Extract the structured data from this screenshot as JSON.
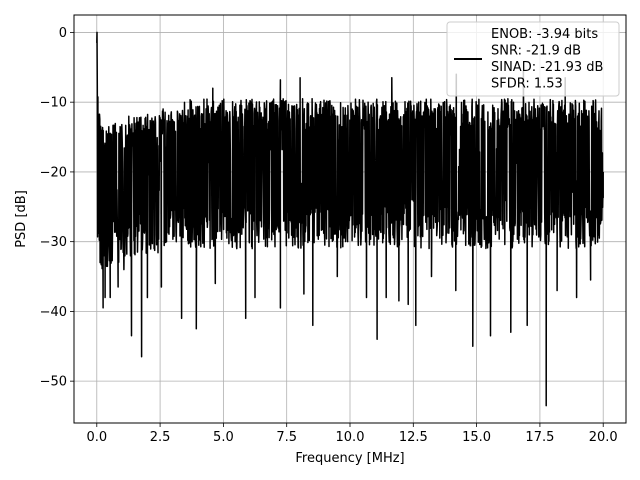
{
  "chart_data": {
    "type": "line",
    "title": "",
    "xlabel": "Frequency [MHz]",
    "ylabel": "PSD [dB]",
    "xlim": [
      -0.9,
      20.9
    ],
    "ylim": [
      -56,
      2.5
    ],
    "xticks": [
      0.0,
      2.5,
      5.0,
      7.5,
      10.0,
      12.5,
      15.0,
      17.5,
      20.0
    ],
    "xtick_labels": [
      "0.0",
      "2.5",
      "5.0",
      "7.5",
      "10.0",
      "12.5",
      "15.0",
      "17.5",
      "20.0"
    ],
    "yticks": [
      0,
      -10,
      -20,
      -30,
      -40,
      -50
    ],
    "ytick_labels": [
      "0",
      "−10",
      "−20",
      "−30",
      "−40",
      "−50"
    ],
    "grid": true,
    "legend_position": "top-right",
    "series": [
      {
        "name": "ENOB: -3.94 bits\nSNR: -21.9 dB\nSINAD: -21.93 dB\nSFDR: 1.53",
        "color": "#000000",
        "description": "noise-like power spectral density from 0 to 20 MHz, mostly between about -35 dB and -10 dB",
        "x": [
          0.0,
          0.01,
          0.03,
          0.06,
          0.1,
          0.15,
          0.2,
          0.3,
          0.4,
          0.5,
          0.6,
          0.75,
          0.9,
          1.05,
          1.2,
          1.35,
          1.5,
          1.75,
          2.0,
          2.25,
          2.5,
          2.75,
          3.0,
          3.25,
          3.5,
          3.75,
          4.0,
          4.25,
          4.5,
          4.75,
          5.0,
          5.25,
          5.5,
          5.75,
          6.0,
          6.25,
          6.5,
          6.75,
          7.0,
          7.25,
          7.5,
          7.75,
          8.0,
          8.25,
          8.5,
          8.75,
          9.0,
          9.25,
          9.5,
          9.75,
          10.0,
          10.25,
          10.5,
          10.75,
          11.0,
          11.25,
          11.5,
          11.75,
          12.0,
          12.25,
          12.5,
          12.75,
          13.0,
          13.25,
          13.5,
          13.75,
          14.0,
          14.25,
          14.5,
          14.75,
          15.0,
          15.25,
          15.5,
          15.75,
          16.0,
          16.25,
          16.5,
          16.75,
          17.0,
          17.25,
          17.5,
          17.75,
          18.0,
          18.25,
          18.5,
          18.75,
          19.0,
          19.25,
          19.5,
          19.75,
          20.0
        ],
        "y": [
          -1.5,
          0.0,
          -10.0,
          -20.0,
          -15.0,
          -25.0,
          -11.0,
          -20.0,
          -30.0,
          -17.0,
          -25.0,
          -20.0,
          -14.0,
          -25.0,
          -22.0,
          -18.0,
          -24.0,
          -20.0,
          -21.0,
          -19.0,
          -22.0,
          -20.0,
          -18.0,
          -21.0,
          -19.0,
          -20.0,
          -22.0,
          -20.0,
          -19.0,
          -21.0,
          -20.0,
          -18.0,
          -21.0,
          -22.0,
          -19.0,
          -20.0,
          -21.0,
          -19.0,
          -20.0,
          -22.0,
          -20.0,
          -19.0,
          -21.0,
          -20.0,
          -22.0,
          -19.0,
          -20.0,
          -21.0,
          -20.0,
          -19.0,
          -21.0,
          -20.0,
          -22.0,
          -19.0,
          -20.0,
          -21.0,
          -20.0,
          -19.0,
          -21.0,
          -20.0,
          -22.0,
          -19.0,
          -20.0,
          -21.0,
          -19.0,
          -20.0,
          -22.0,
          -20.0,
          -19.0,
          -21.0,
          -20.0,
          -19.0,
          -21.0,
          -20.0,
          -22.0,
          -19.0,
          -20.0,
          -21.0,
          -20.0,
          -19.0,
          -21.0,
          -20.0,
          -22.0,
          -19.0,
          -20.0,
          -21.0,
          -20.0,
          -19.0,
          -21.0,
          -20.0,
          -20.0
        ],
        "upper_envelope": [
          -1.5,
          0.0,
          -8.0,
          -10.5,
          -11.5,
          -12.0,
          -13.0,
          -13.5,
          -13.5,
          -13.0,
          -12.5,
          -13.0,
          -13.0,
          -12.5,
          -12.0,
          -12.0,
          -12.0,
          -12.0,
          -11.5,
          -11.0,
          -11.0,
          -10.5,
          -10.5,
          -10.0,
          -10.0,
          -9.5,
          -10.0,
          -9.5,
          -9.5,
          -9.5,
          -9.5,
          -9.5,
          -10.0,
          -9.5,
          -9.5,
          -9.5,
          -10.0,
          -9.5,
          -9.5,
          -9.5,
          -9.5,
          -10.0,
          -9.5,
          -9.5,
          -9.5,
          -9.5,
          -9.5,
          -9.5,
          -10.0,
          -9.5,
          -9.5,
          -9.5,
          -9.5,
          -10.0,
          -9.5,
          -9.5,
          -9.5,
          -9.5,
          -9.5,
          -9.5,
          -10.0,
          -9.5,
          -9.5,
          -9.5,
          -9.5,
          -9.5,
          -9.5,
          -10.0,
          -9.5,
          -9.5,
          -9.5,
          -9.5,
          -9.5,
          -10.0,
          -9.5,
          -9.5,
          -9.5,
          -9.5,
          -9.5,
          -9.5,
          -10.0,
          -9.5,
          -9.5,
          -9.5,
          -9.5,
          -10.0,
          -9.5,
          -9.5,
          -9.5,
          -9.5,
          -11.0
        ],
        "typical_lower_envelope": [
          -1.5,
          -22.0,
          -30.0,
          -33.0,
          -33.0,
          -34.0,
          -35.0,
          -35.0,
          -34.0,
          -34.0,
          -33.0,
          -33.0,
          -33.0,
          -33.0,
          -33.0,
          -33.0,
          -32.0,
          -32.0,
          -32.0,
          -32.0,
          -32.0,
          -31.0,
          -31.0,
          -31.0,
          -31.0,
          -31.0,
          -31.0,
          -31.0,
          -31.0,
          -31.0,
          -31.0,
          -31.0,
          -31.0,
          -31.0,
          -31.0,
          -31.0,
          -31.0,
          -31.0,
          -31.0,
          -31.0,
          -31.0,
          -31.0,
          -31.0,
          -31.0,
          -31.0,
          -31.0,
          -31.0,
          -31.0,
          -31.0,
          -31.0,
          -31.0,
          -31.0,
          -31.0,
          -31.0,
          -31.0,
          -31.0,
          -31.0,
          -31.0,
          -31.0,
          -31.0,
          -31.0,
          -31.0,
          -31.0,
          -31.0,
          -31.0,
          -31.0,
          -31.0,
          -31.0,
          -31.0,
          -31.0,
          -31.0,
          -31.0,
          -31.0,
          -31.0,
          -31.0,
          -31.0,
          -31.0,
          -31.0,
          -31.0,
          -31.0,
          -31.0,
          -31.0,
          -31.0,
          -31.0,
          -31.0,
          -31.0,
          -31.0,
          -31.0,
          -31.0,
          -31.0,
          -27.0
        ],
        "deep_dips": [
          {
            "x": 0.13,
            "y": -33.0
          },
          {
            "x": 0.25,
            "y": -39.5
          },
          {
            "x": 0.33,
            "y": -38.0
          },
          {
            "x": 0.53,
            "y": -38.0
          },
          {
            "x": 0.84,
            "y": -36.5
          },
          {
            "x": 1.07,
            "y": -34.0
          },
          {
            "x": 1.37,
            "y": -43.5
          },
          {
            "x": 1.77,
            "y": -46.5
          },
          {
            "x": 2.0,
            "y": -38.0
          },
          {
            "x": 2.55,
            "y": -36.5
          },
          {
            "x": 3.35,
            "y": -41.0
          },
          {
            "x": 3.93,
            "y": -42.5
          },
          {
            "x": 4.68,
            "y": -36.0
          },
          {
            "x": 5.88,
            "y": -41.0
          },
          {
            "x": 6.25,
            "y": -38.0
          },
          {
            "x": 7.25,
            "y": -39.5
          },
          {
            "x": 8.18,
            "y": -37.5
          },
          {
            "x": 8.53,
            "y": -42.0
          },
          {
            "x": 9.5,
            "y": -35.0
          },
          {
            "x": 10.65,
            "y": -38.0
          },
          {
            "x": 11.07,
            "y": -44.0
          },
          {
            "x": 11.43,
            "y": -38.0
          },
          {
            "x": 11.93,
            "y": -38.5
          },
          {
            "x": 12.3,
            "y": -39.0
          },
          {
            "x": 12.6,
            "y": -42.0
          },
          {
            "x": 13.22,
            "y": -35.0
          },
          {
            "x": 14.18,
            "y": -37.0
          },
          {
            "x": 14.85,
            "y": -45.0
          },
          {
            "x": 15.55,
            "y": -43.5
          },
          {
            "x": 16.35,
            "y": -43.0
          },
          {
            "x": 17.0,
            "y": -42.0
          },
          {
            "x": 17.75,
            "y": -53.5
          },
          {
            "x": 18.18,
            "y": -37.0
          },
          {
            "x": 18.95,
            "y": -38.0
          },
          {
            "x": 19.5,
            "y": -35.5
          }
        ],
        "peak_spikes": [
          {
            "x": 4.58,
            "y": -8.0
          },
          {
            "x": 7.25,
            "y": -6.8
          },
          {
            "x": 8.03,
            "y": -6.5
          },
          {
            "x": 11.65,
            "y": -6.5
          },
          {
            "x": 14.2,
            "y": -6.0
          },
          {
            "x": 16.85,
            "y": -5.5
          },
          {
            "x": 18.5,
            "y": -6.5
          }
        ]
      }
    ]
  }
}
